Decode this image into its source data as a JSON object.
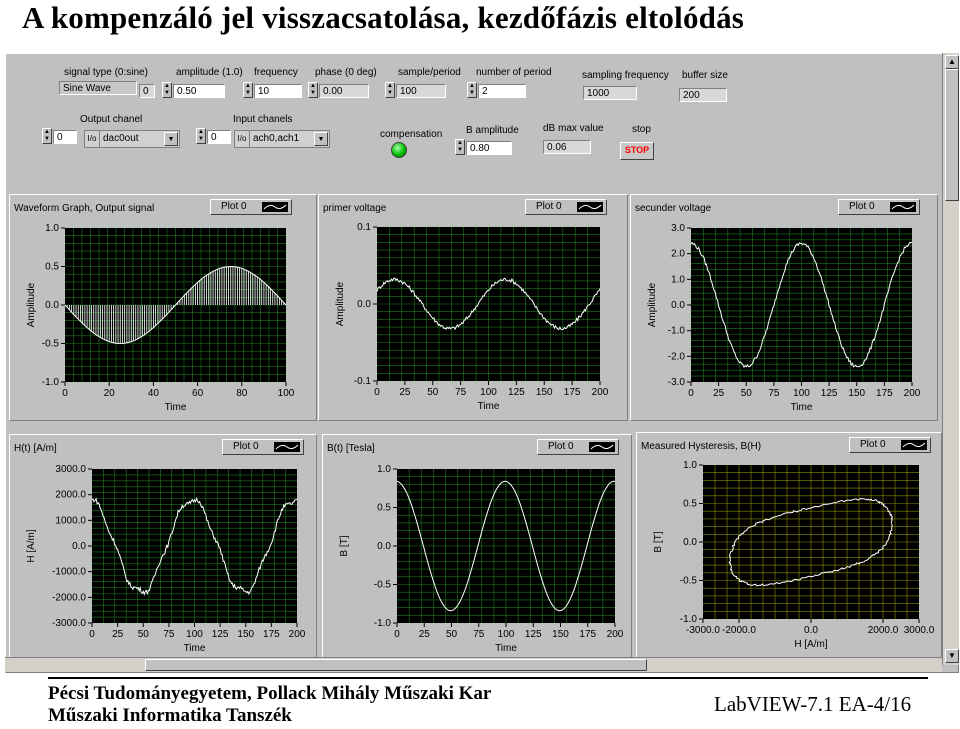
{
  "title": "A kompenzáló jel visszacsatolása, kezdőfázis eltolódás",
  "controls": {
    "signal_type": {
      "label": "signal type (0:sine)",
      "value": "Sine Wave",
      "index": "0"
    },
    "amplitude": {
      "label": "amplitude (1.0)",
      "value": "0.50"
    },
    "frequency": {
      "label": "frequency",
      "value": "10"
    },
    "phase": {
      "label": "phase (0 deg)",
      "value": "0.00"
    },
    "sample_period": {
      "label": "sample/period",
      "value": "100"
    },
    "number_of_period": {
      "label": "number of period",
      "value": "2"
    },
    "sampling_frequency": {
      "label": "sampling frequency",
      "value": "1000"
    },
    "buffer_size": {
      "label": "buffer size",
      "value": "200"
    },
    "output_channel": {
      "label": "Output chanel",
      "index": "0",
      "prefix": "I/o",
      "value": "dac0out"
    },
    "input_channels": {
      "label": "Input chanels",
      "index": "0",
      "prefix": "I/o",
      "value": "ach0,ach1"
    },
    "compensation": {
      "label": "compensation"
    },
    "b_amplitude": {
      "label": "B amplitude",
      "value": "0.80"
    },
    "db_max": {
      "label": "dB max value",
      "value": "0.06"
    },
    "stop": {
      "label": "stop",
      "button": "STOP"
    }
  },
  "colors": {
    "panel": "#c0c0c0",
    "plot_bg": "#000000",
    "grid": "#1e7a1e",
    "trace": "#ffffff",
    "hysteresis_grid": "#8a8a00"
  },
  "graphs": [
    {
      "title": "Waveform Graph, Output signal",
      "legend": "Plot 0",
      "ylabel": "Amplitude",
      "xlabel": "Time",
      "yticks": [
        "1.0",
        "0.5",
        "0.0",
        "-0.5",
        "-1.0"
      ],
      "xticks": [
        "0",
        "20",
        "40",
        "60",
        "80",
        "100"
      ]
    },
    {
      "title": "primer voltage",
      "legend": "Plot 0",
      "ylabel": "Amplitude",
      "xlabel": "Time",
      "yticks": [
        "0.1",
        "0.0",
        "-0.1"
      ],
      "xticks": [
        "0",
        "25",
        "50",
        "75",
        "100",
        "125",
        "150",
        "175",
        "200"
      ]
    },
    {
      "title": "secunder voltage",
      "legend": "Plot 0",
      "ylabel": "Amplitude",
      "xlabel": "Time",
      "yticks": [
        "3.0",
        "2.0",
        "1.0",
        "0.0",
        "-1.0",
        "-2.0",
        "-3.0"
      ],
      "xticks": [
        "0",
        "25",
        "50",
        "75",
        "100",
        "125",
        "150",
        "175",
        "200"
      ]
    },
    {
      "title": "H(t)  [A/m]",
      "legend": "Plot 0",
      "ylabel": "H [A/m]",
      "xlabel": "Time",
      "yticks": [
        "3000.0",
        "2000.0",
        "1000.0",
        "0.0",
        "-1000.0",
        "-2000.0",
        "-3000.0"
      ],
      "xticks": [
        "0",
        "25",
        "50",
        "75",
        "100",
        "125",
        "150",
        "175",
        "200"
      ]
    },
    {
      "title": "B(t) [Tesla]",
      "legend": "Plot 0",
      "ylabel": "B [T]",
      "xlabel": "Time",
      "yticks": [
        "1.0",
        "0.5",
        "0.0",
        "-0.5",
        "-1.0"
      ],
      "xticks": [
        "0",
        "25",
        "50",
        "75",
        "100",
        "125",
        "150",
        "175",
        "200"
      ]
    },
    {
      "title": "Measured Hysteresis, B(H)",
      "legend": "Plot 0",
      "ylabel": "B [T]",
      "xlabel": "H [A/m]",
      "yticks": [
        "1.0",
        "0.5",
        "0.0",
        "-0.5",
        "-1.0"
      ],
      "xticks": [
        "-3000.0",
        "-2000.0",
        "0.0",
        "2000.0",
        "3000.0"
      ]
    }
  ],
  "footer": {
    "line1": "Pécsi Tudományegyetem, Pollack Mihály Műszaki Kar",
    "line2": "Műszaki Informatika Tanszék",
    "right": "LabVIEW-7.1 EA-4/16"
  }
}
